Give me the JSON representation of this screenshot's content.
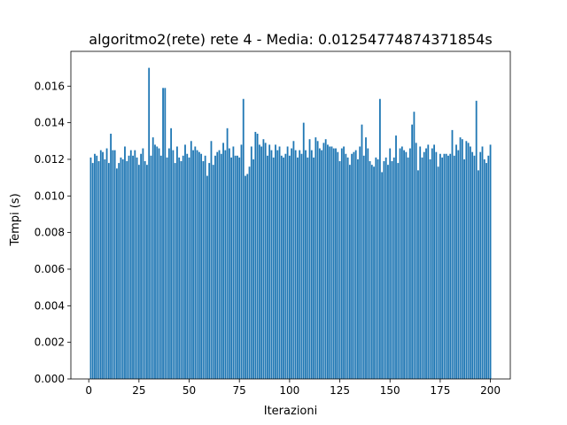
{
  "chart_data": {
    "type": "bar",
    "title": "algoritmo2(rete) rete 4 - Media: 0.01254774874371854s",
    "xlabel": "Iterazioni",
    "ylabel": "Tempi (s)",
    "xlim": [
      -8.9,
      209.9
    ],
    "ylim": [
      0,
      0.0179
    ],
    "xticks": [
      0,
      25,
      50,
      75,
      100,
      125,
      150,
      175,
      200
    ],
    "xtick_labels": [
      "0",
      "25",
      "50",
      "75",
      "100",
      "125",
      "150",
      "175",
      "200"
    ],
    "yticks": [
      0,
      0.002,
      0.004,
      0.006,
      0.008,
      0.01,
      0.012,
      0.014,
      0.016
    ],
    "ytick_labels": [
      "0.000",
      "0.002",
      "0.004",
      "0.006",
      "0.008",
      "0.010",
      "0.012",
      "0.014",
      "0.016"
    ],
    "grid": false,
    "legend": "none",
    "bar_color": "#1f77b4",
    "x_start": 1,
    "values": [
      0.0121,
      0.0118,
      0.0123,
      0.0122,
      0.0119,
      0.0125,
      0.0124,
      0.012,
      0.0126,
      0.0118,
      0.0134,
      0.0125,
      0.0125,
      0.0115,
      0.0118,
      0.0121,
      0.012,
      0.0127,
      0.0119,
      0.0122,
      0.0125,
      0.0122,
      0.0125,
      0.0121,
      0.0117,
      0.0123,
      0.0126,
      0.0119,
      0.0117,
      0.017,
      0.0122,
      0.0132,
      0.0128,
      0.0127,
      0.0126,
      0.0122,
      0.0159,
      0.0159,
      0.0121,
      0.0126,
      0.0137,
      0.0125,
      0.0118,
      0.0127,
      0.0121,
      0.0119,
      0.0122,
      0.0128,
      0.0123,
      0.0121,
      0.013,
      0.0125,
      0.0127,
      0.0125,
      0.0124,
      0.0123,
      0.0119,
      0.0122,
      0.0111,
      0.0118,
      0.013,
      0.0117,
      0.0122,
      0.0124,
      0.0125,
      0.0123,
      0.0129,
      0.0125,
      0.0137,
      0.0126,
      0.0121,
      0.0127,
      0.0122,
      0.0122,
      0.0121,
      0.0128,
      0.0153,
      0.0111,
      0.0112,
      0.0116,
      0.0127,
      0.012,
      0.0135,
      0.0134,
      0.0128,
      0.0127,
      0.0131,
      0.0129,
      0.0122,
      0.0128,
      0.0125,
      0.0121,
      0.0128,
      0.0125,
      0.0127,
      0.0122,
      0.0121,
      0.0123,
      0.0127,
      0.0122,
      0.0126,
      0.013,
      0.0125,
      0.0121,
      0.0125,
      0.0123,
      0.014,
      0.0125,
      0.0121,
      0.0131,
      0.0125,
      0.0121,
      0.0132,
      0.013,
      0.0126,
      0.0125,
      0.0129,
      0.0131,
      0.0128,
      0.0127,
      0.0127,
      0.0126,
      0.0126,
      0.0124,
      0.0119,
      0.0126,
      0.0127,
      0.0123,
      0.0121,
      0.0117,
      0.0123,
      0.0124,
      0.0125,
      0.012,
      0.0127,
      0.0139,
      0.0122,
      0.0132,
      0.0126,
      0.0119,
      0.0117,
      0.0116,
      0.0121,
      0.012,
      0.0153,
      0.0113,
      0.0119,
      0.0121,
      0.0117,
      0.0126,
      0.0119,
      0.0121,
      0.0133,
      0.0118,
      0.0126,
      0.0127,
      0.0125,
      0.0124,
      0.0121,
      0.0126,
      0.0139,
      0.0146,
      0.0129,
      0.0114,
      0.0127,
      0.0121,
      0.0124,
      0.0126,
      0.0128,
      0.012,
      0.0126,
      0.0128,
      0.0124,
      0.0116,
      0.0123,
      0.0121,
      0.0123,
      0.0123,
      0.0122,
      0.0123,
      0.0136,
      0.0122,
      0.0128,
      0.0125,
      0.0132,
      0.0131,
      0.012,
      0.013,
      0.0129,
      0.0127,
      0.0124,
      0.0122,
      0.0152,
      0.0114,
      0.0124,
      0.0127,
      0.012,
      0.0118,
      0.0122,
      0.0128
    ]
  }
}
